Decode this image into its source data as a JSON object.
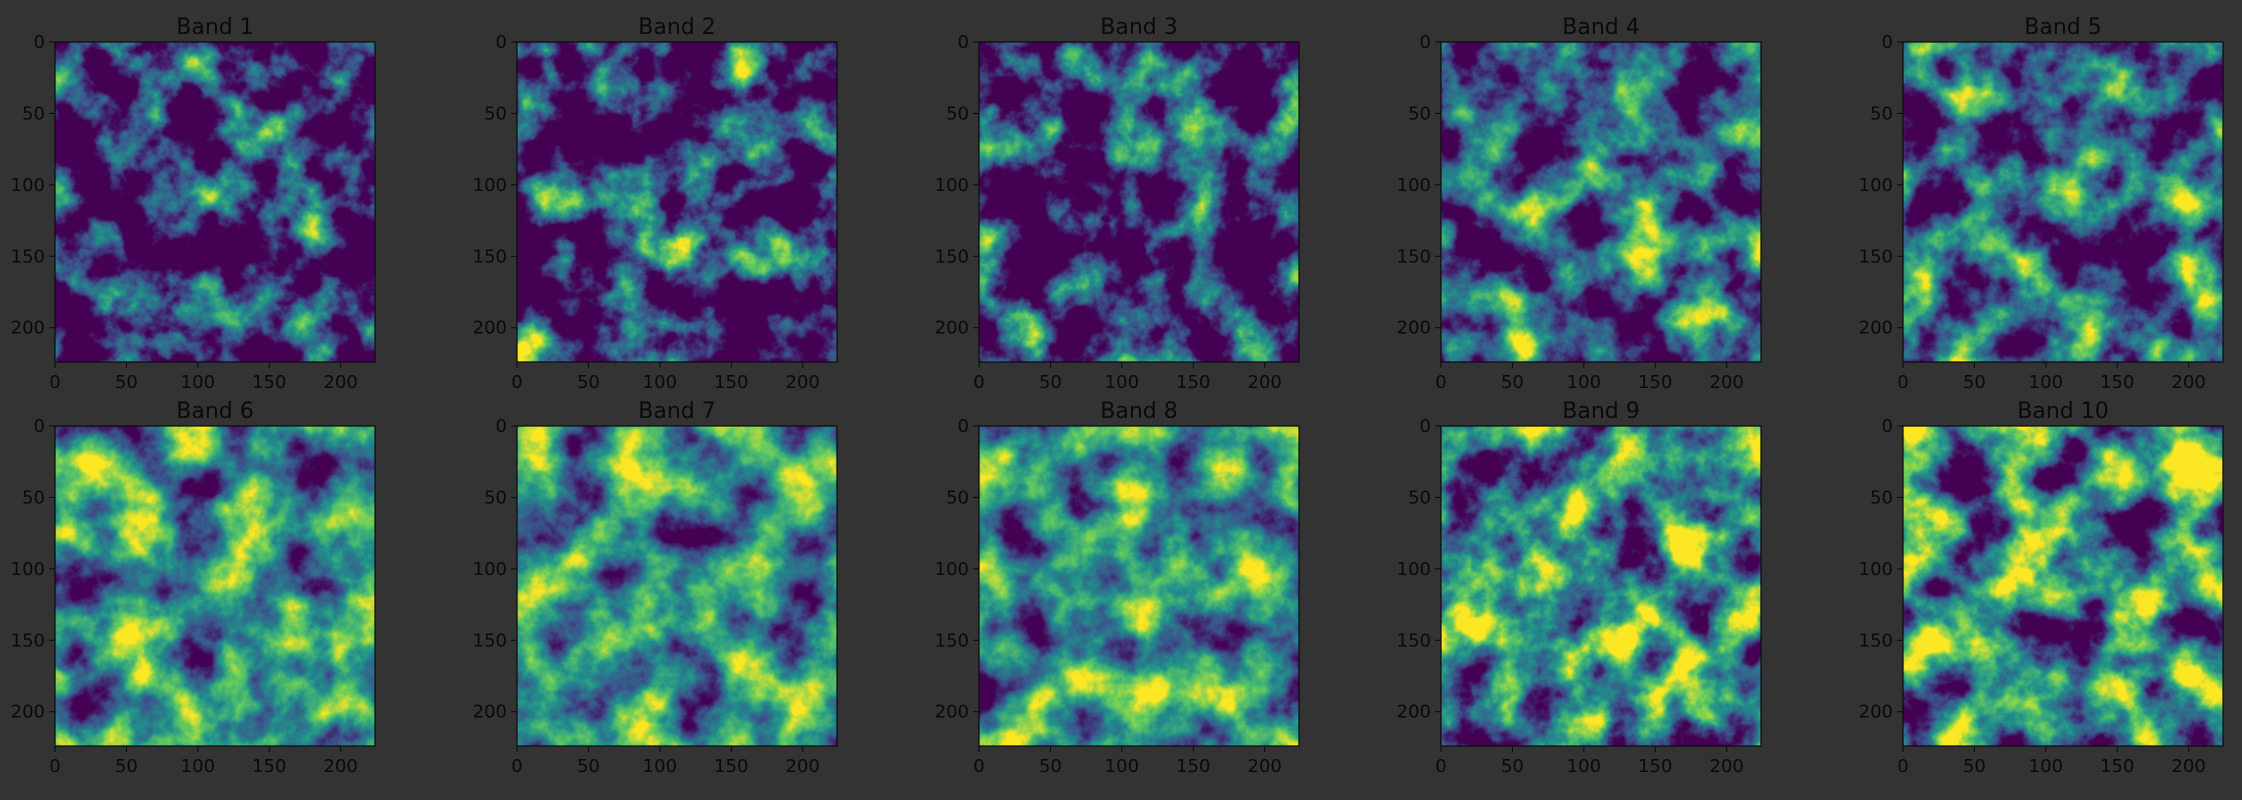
{
  "chart_data": [
    {
      "type": "heatmap",
      "title": "Band 1",
      "xticks": [
        0,
        50,
        100,
        150,
        200
      ],
      "yticks": [
        0,
        50,
        100,
        150,
        200
      ],
      "xlim": [
        0,
        224
      ],
      "ylim": [
        224,
        0
      ],
      "colormap": "viridis",
      "style": "low_contrast"
    },
    {
      "type": "heatmap",
      "title": "Band 2",
      "xticks": [
        0,
        50,
        100,
        150,
        200
      ],
      "yticks": [
        0,
        50,
        100,
        150,
        200
      ],
      "xlim": [
        0,
        224
      ],
      "ylim": [
        224,
        0
      ],
      "colormap": "viridis",
      "style": "low_contrast"
    },
    {
      "type": "heatmap",
      "title": "Band 3",
      "xticks": [
        0,
        50,
        100,
        150,
        200
      ],
      "yticks": [
        0,
        50,
        100,
        150,
        200
      ],
      "xlim": [
        0,
        224
      ],
      "ylim": [
        224,
        0
      ],
      "colormap": "viridis",
      "style": "low_contrast"
    },
    {
      "type": "heatmap",
      "title": "Band 4",
      "xticks": [
        0,
        50,
        100,
        150,
        200
      ],
      "yticks": [
        0,
        50,
        100,
        150,
        200
      ],
      "xlim": [
        0,
        224
      ],
      "ylim": [
        224,
        0
      ],
      "colormap": "viridis",
      "style": "mid_contrast"
    },
    {
      "type": "heatmap",
      "title": "Band 5",
      "xticks": [
        0,
        50,
        100,
        150,
        200
      ],
      "yticks": [
        0,
        50,
        100,
        150,
        200
      ],
      "xlim": [
        0,
        224
      ],
      "ylim": [
        224,
        0
      ],
      "colormap": "viridis",
      "style": "mid_contrast"
    },
    {
      "type": "heatmap",
      "title": "Band 6",
      "xticks": [
        0,
        50,
        100,
        150,
        200
      ],
      "yticks": [
        0,
        50,
        100,
        150,
        200
      ],
      "xlim": [
        0,
        224
      ],
      "ylim": [
        224,
        0
      ],
      "colormap": "viridis",
      "style": "bright_background"
    },
    {
      "type": "heatmap",
      "title": "Band 7",
      "xticks": [
        0,
        50,
        100,
        150,
        200
      ],
      "yticks": [
        0,
        50,
        100,
        150,
        200
      ],
      "xlim": [
        0,
        224
      ],
      "ylim": [
        224,
        0
      ],
      "colormap": "viridis",
      "style": "bright_background"
    },
    {
      "type": "heatmap",
      "title": "Band 8",
      "xticks": [
        0,
        50,
        100,
        150,
        200
      ],
      "yticks": [
        0,
        50,
        100,
        150,
        200
      ],
      "xlim": [
        0,
        224
      ],
      "ylim": [
        224,
        0
      ],
      "colormap": "viridis",
      "style": "bright_background"
    },
    {
      "type": "heatmap",
      "title": "Band 9",
      "xticks": [
        0,
        50,
        100,
        150,
        200
      ],
      "yticks": [
        0,
        50,
        100,
        150,
        200
      ],
      "xlim": [
        0,
        224
      ],
      "ylim": [
        224,
        0
      ],
      "colormap": "viridis",
      "style": "swir"
    },
    {
      "type": "heatmap",
      "title": "Band 10",
      "xticks": [
        0,
        50,
        100,
        150,
        200
      ],
      "yticks": [
        0,
        50,
        100,
        150,
        200
      ],
      "xlim": [
        0,
        224
      ],
      "ylim": [
        224,
        0
      ],
      "colormap": "viridis",
      "style": "swir"
    }
  ],
  "colors": {
    "figure_background": "#333333",
    "text": "#0a0a0a",
    "viridis_low": "#440154",
    "viridis_mid": "#21918c",
    "viridis_high": "#fde725"
  }
}
